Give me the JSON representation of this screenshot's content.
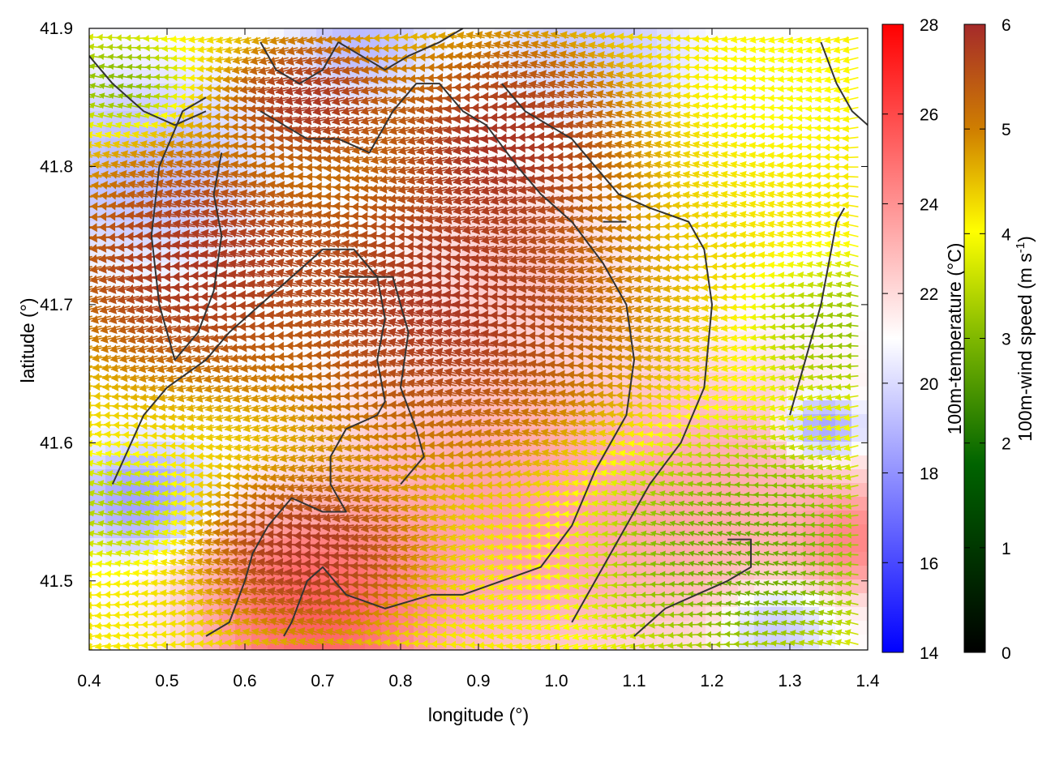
{
  "chart_data": {
    "type": "heatmap",
    "title": "",
    "xlabel": "longitude (°)",
    "ylabel": "latitude (°)",
    "xlim": [
      0.4,
      1.4
    ],
    "ylim": [
      41.45,
      41.9
    ],
    "x_ticks": [
      0.4,
      0.5,
      0.6,
      0.7,
      0.8,
      0.9,
      1.0,
      1.1,
      1.2,
      1.3,
      1.4
    ],
    "x_tick_labels": [
      "0.4",
      "0.5",
      "0.6",
      "0.7",
      "0.8",
      "0.9",
      "1.0",
      "1.1",
      "1.2",
      "1.3",
      "1.4"
    ],
    "y_ticks": [
      41.5,
      41.6,
      41.7,
      41.8,
      41.9
    ],
    "y_tick_labels": [
      "41.5",
      "41.6",
      "41.7",
      "41.8",
      "41.9"
    ],
    "grid": false,
    "temperature_colorbar": {
      "label": "100m-temperature (°C)",
      "range": [
        14,
        28
      ],
      "ticks": [
        14,
        16,
        18,
        20,
        22,
        24,
        26,
        28
      ],
      "tick_labels": [
        "14",
        "16",
        "18",
        "20",
        "22",
        "24",
        "26",
        "28"
      ],
      "colors": [
        "#0000ff",
        "#ffffff",
        "#ff0000"
      ]
    },
    "windspeed_colorbar": {
      "label": "100m-wind speed (m s",
      "label_superscript": "-1",
      "label_close": ")",
      "range": [
        0,
        6
      ],
      "ticks": [
        0,
        1,
        2,
        3,
        4,
        5,
        6
      ],
      "tick_labels": [
        "0",
        "1",
        "2",
        "3",
        "4",
        "5",
        "6"
      ],
      "colors": [
        "#000000",
        "#006400",
        "#7fb800",
        "#ffff00",
        "#d08000",
        "#a52a2a"
      ]
    },
    "temperature_field": {
      "description_free": true,
      "blobs": [
        {
          "lon": 0.7,
          "lat": 41.48,
          "temp": 27.0,
          "r": 0.12
        },
        {
          "lon": 0.95,
          "lat": 41.55,
          "temp": 24.5,
          "r": 0.18
        },
        {
          "lon": 1.2,
          "lat": 41.56,
          "temp": 24.0,
          "r": 0.15
        },
        {
          "lon": 1.38,
          "lat": 41.53,
          "temp": 25.5,
          "r": 0.06
        },
        {
          "lon": 0.95,
          "lat": 41.72,
          "temp": 23.0,
          "r": 0.1
        },
        {
          "lon": 0.47,
          "lat": 41.56,
          "temp": 17.5,
          "r": 0.06
        },
        {
          "lon": 0.47,
          "lat": 41.8,
          "temp": 18.5,
          "r": 0.1
        },
        {
          "lon": 1.34,
          "lat": 41.61,
          "temp": 16.5,
          "r": 0.04
        },
        {
          "lon": 0.75,
          "lat": 41.89,
          "temp": 18.5,
          "r": 0.06
        },
        {
          "lon": 1.05,
          "lat": 41.89,
          "temp": 19.0,
          "r": 0.08
        },
        {
          "lon": 1.28,
          "lat": 41.47,
          "temp": 18.5,
          "r": 0.05
        }
      ],
      "background_temp": 21.0
    },
    "wind_field": {
      "grid_lon_step": 0.012,
      "grid_lat_step": 0.0072,
      "direction_deg_from_east": 180,
      "speed_blobs": [
        {
          "lon": 0.55,
          "lat": 41.73,
          "speed": 6.5,
          "r": 0.14
        },
        {
          "lon": 0.88,
          "lat": 41.7,
          "speed": 6.5,
          "r": 0.18
        },
        {
          "lon": 0.95,
          "lat": 41.82,
          "speed": 6.5,
          "r": 0.12
        },
        {
          "lon": 0.7,
          "lat": 41.85,
          "speed": 6.5,
          "r": 0.08
        },
        {
          "lon": 0.7,
          "lat": 41.52,
          "speed": 6.5,
          "r": 0.1
        },
        {
          "lon": 1.25,
          "lat": 41.52,
          "speed": 1.6,
          "r": 0.14
        },
        {
          "lon": 1.38,
          "lat": 41.68,
          "speed": 2.2,
          "r": 0.08
        },
        {
          "lon": 0.45,
          "lat": 41.55,
          "speed": 2.5,
          "r": 0.06
        },
        {
          "lon": 0.45,
          "lat": 41.86,
          "speed": 2.0,
          "r": 0.06
        },
        {
          "lon": 1.3,
          "lat": 41.86,
          "speed": 3.5,
          "r": 0.08
        }
      ],
      "background_speed": 3.8
    },
    "contours": [
      [
        [
          0.43,
          41.57
        ],
        [
          0.47,
          41.62
        ],
        [
          0.5,
          41.64
        ],
        [
          0.55,
          41.66
        ],
        [
          0.58,
          41.68
        ],
        [
          0.62,
          41.7
        ],
        [
          0.66,
          41.72
        ],
        [
          0.7,
          41.74
        ],
        [
          0.74,
          41.74
        ],
        [
          0.77,
          41.72
        ],
        [
          0.78,
          41.69
        ],
        [
          0.77,
          41.66
        ],
        [
          0.78,
          41.63
        ],
        [
          0.77,
          41.62
        ],
        [
          0.73,
          41.61
        ],
        [
          0.71,
          41.59
        ],
        [
          0.71,
          41.57
        ],
        [
          0.73,
          41.55
        ],
        [
          0.7,
          41.55
        ],
        [
          0.66,
          41.56
        ],
        [
          0.63,
          41.54
        ],
        [
          0.61,
          41.52
        ],
        [
          0.6,
          41.5
        ],
        [
          0.58,
          41.47
        ],
        [
          0.55,
          41.46
        ]
      ],
      [
        [
          0.57,
          41.81
        ],
        [
          0.56,
          41.78
        ],
        [
          0.57,
          41.75
        ],
        [
          0.56,
          41.71
        ],
        [
          0.54,
          41.68
        ],
        [
          0.51,
          41.66
        ],
        [
          0.49,
          41.7
        ],
        [
          0.48,
          41.75
        ],
        [
          0.49,
          41.8
        ],
        [
          0.52,
          41.84
        ],
        [
          0.55,
          41.85
        ]
      ],
      [
        [
          0.62,
          41.84
        ],
        [
          0.65,
          41.83
        ],
        [
          0.68,
          41.82
        ],
        [
          0.72,
          41.82
        ],
        [
          0.76,
          41.81
        ],
        [
          0.79,
          41.84
        ],
        [
          0.82,
          41.86
        ],
        [
          0.85,
          41.86
        ],
        [
          0.88,
          41.84
        ],
        [
          0.91,
          41.83
        ],
        [
          0.95,
          41.8
        ],
        [
          0.98,
          41.78
        ],
        [
          1.02,
          41.76
        ],
        [
          1.06,
          41.73
        ],
        [
          1.09,
          41.7
        ],
        [
          1.1,
          41.66
        ],
        [
          1.09,
          41.62
        ],
        [
          1.05,
          41.58
        ],
        [
          1.02,
          41.54
        ],
        [
          0.98,
          41.51
        ],
        [
          0.93,
          41.5
        ],
        [
          0.88,
          41.49
        ],
        [
          0.84,
          41.49
        ],
        [
          0.78,
          41.48
        ],
        [
          0.73,
          41.49
        ],
        [
          0.7,
          41.51
        ],
        [
          0.68,
          41.5
        ],
        [
          0.66,
          41.47
        ],
        [
          0.65,
          41.46
        ]
      ],
      [
        [
          0.72,
          41.72
        ],
        [
          0.79,
          41.72
        ],
        [
          0.81,
          41.68
        ],
        [
          0.8,
          41.64
        ],
        [
          0.82,
          41.61
        ],
        [
          0.83,
          41.59
        ],
        [
          0.8,
          41.57
        ]
      ],
      [
        [
          0.93,
          41.86
        ],
        [
          0.96,
          41.84
        ],
        [
          0.99,
          41.83
        ],
        [
          1.02,
          41.82
        ],
        [
          1.05,
          41.8
        ],
        [
          1.08,
          41.78
        ],
        [
          1.12,
          41.77
        ],
        [
          1.17,
          41.76
        ],
        [
          1.19,
          41.74
        ],
        [
          1.2,
          41.7
        ],
        [
          1.19,
          41.64
        ],
        [
          1.16,
          41.6
        ],
        [
          1.12,
          41.57
        ],
        [
          1.08,
          41.53
        ],
        [
          1.05,
          41.5
        ],
        [
          1.02,
          41.47
        ]
      ],
      [
        [
          1.06,
          41.76
        ],
        [
          1.09,
          41.76
        ]
      ],
      [
        [
          1.1,
          41.46
        ],
        [
          1.14,
          41.48
        ],
        [
          1.18,
          41.49
        ],
        [
          1.22,
          41.5
        ],
        [
          1.25,
          41.51
        ],
        [
          1.25,
          41.53
        ],
        [
          1.22,
          41.53
        ]
      ],
      [
        [
          1.3,
          41.62
        ],
        [
          1.32,
          41.66
        ],
        [
          1.34,
          41.7
        ],
        [
          1.35,
          41.73
        ],
        [
          1.36,
          41.76
        ],
        [
          1.37,
          41.77
        ]
      ],
      [
        [
          1.34,
          41.89
        ],
        [
          1.36,
          41.86
        ],
        [
          1.38,
          41.84
        ],
        [
          1.4,
          41.83
        ]
      ],
      [
        [
          0.72,
          41.89
        ],
        [
          0.75,
          41.88
        ],
        [
          0.78,
          41.87
        ],
        [
          0.81,
          41.88
        ],
        [
          0.85,
          41.89
        ],
        [
          0.88,
          41.9
        ]
      ],
      [
        [
          0.62,
          41.89
        ],
        [
          0.64,
          41.87
        ],
        [
          0.67,
          41.86
        ],
        [
          0.7,
          41.87
        ],
        [
          0.72,
          41.89
        ]
      ],
      [
        [
          0.4,
          41.88
        ],
        [
          0.43,
          41.86
        ],
        [
          0.47,
          41.84
        ],
        [
          0.51,
          41.83
        ],
        [
          0.55,
          41.84
        ]
      ]
    ]
  }
}
